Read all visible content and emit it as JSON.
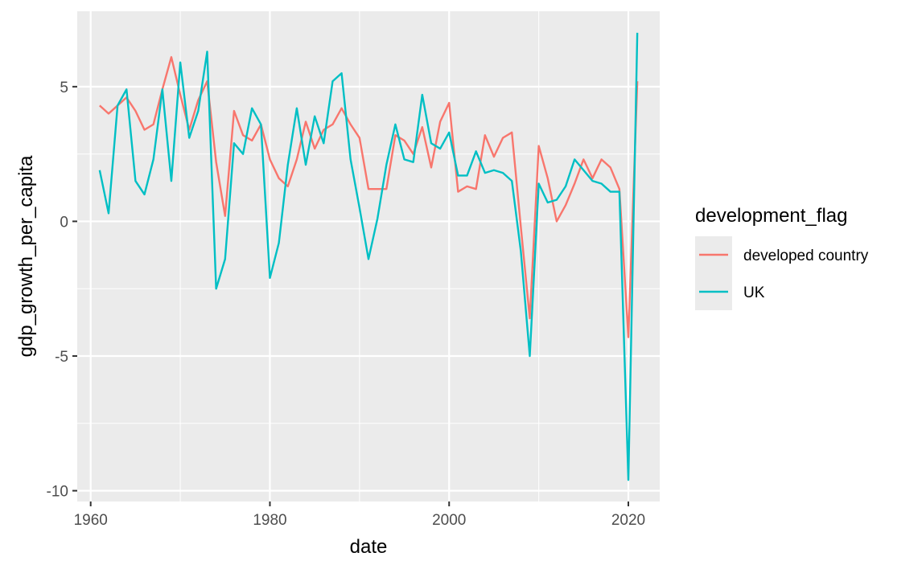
{
  "chart_data": {
    "type": "line",
    "xlabel": "date",
    "ylabel": "gdp_growth_per_capita",
    "xlim": [
      1958.5,
      2023.5
    ],
    "ylim": [
      -10.4,
      7.8
    ],
    "x_ticks": [
      1960,
      1980,
      2000,
      2020
    ],
    "x_tick_labels": [
      "1960",
      "1980",
      "2000",
      "2020"
    ],
    "y_ticks": [
      -10,
      -5,
      0,
      5
    ],
    "y_tick_labels": [
      "-10",
      "-5",
      "0",
      "5"
    ],
    "grid": true,
    "panel_background": "#EBEBEB",
    "legend": {
      "title": "development_flag",
      "position": "right"
    },
    "x": [
      1961,
      1962,
      1963,
      1964,
      1965,
      1966,
      1967,
      1968,
      1969,
      1970,
      1971,
      1972,
      1973,
      1974,
      1975,
      1976,
      1977,
      1978,
      1979,
      1980,
      1981,
      1982,
      1983,
      1984,
      1985,
      1986,
      1987,
      1988,
      1989,
      1990,
      1991,
      1992,
      1993,
      1994,
      1995,
      1996,
      1997,
      1998,
      1999,
      2000,
      2001,
      2002,
      2003,
      2004,
      2005,
      2006,
      2007,
      2008,
      2009,
      2010,
      2011,
      2012,
      2013,
      2014,
      2015,
      2016,
      2017,
      2018,
      2019,
      2020,
      2021
    ],
    "series": [
      {
        "name": "developed country",
        "color": "#F8766D",
        "values": [
          4.3,
          4.0,
          4.3,
          4.6,
          4.1,
          3.4,
          3.6,
          4.9,
          6.1,
          4.7,
          3.4,
          4.5,
          5.2,
          2.2,
          0.2,
          4.1,
          3.2,
          3.0,
          3.6,
          2.3,
          1.6,
          1.3,
          2.3,
          3.7,
          2.7,
          3.4,
          3.6,
          4.2,
          3.6,
          3.1,
          1.2,
          1.2,
          1.2,
          3.2,
          3.0,
          2.5,
          3.5,
          2.0,
          3.7,
          4.4,
          1.1,
          1.3,
          1.2,
          3.2,
          2.4,
          3.1,
          3.3,
          -0.2,
          -3.6,
          2.8,
          1.6,
          0.0,
          0.6,
          1.4,
          2.3,
          1.6,
          2.3,
          2.0,
          1.2,
          -4.3,
          5.2
        ]
      },
      {
        "name": "UK",
        "color": "#00BFC4",
        "values": [
          1.9,
          0.3,
          4.3,
          4.9,
          1.5,
          1.0,
          2.3,
          4.9,
          1.5,
          5.9,
          3.1,
          4.1,
          6.3,
          -2.5,
          -1.4,
          2.9,
          2.5,
          4.2,
          3.6,
          -2.1,
          -0.8,
          2.1,
          4.2,
          2.1,
          3.9,
          2.9,
          5.2,
          5.5,
          2.3,
          0.5,
          -1.4,
          0.1,
          2.1,
          3.6,
          2.3,
          2.2,
          4.7,
          2.9,
          2.7,
          3.3,
          1.7,
          1.7,
          2.6,
          1.8,
          1.9,
          1.8,
          1.5,
          -1.1,
          -5.0,
          1.4,
          0.7,
          0.8,
          1.3,
          2.3,
          1.9,
          1.5,
          1.4,
          1.1,
          1.1,
          -9.6,
          7.0
        ]
      }
    ]
  }
}
